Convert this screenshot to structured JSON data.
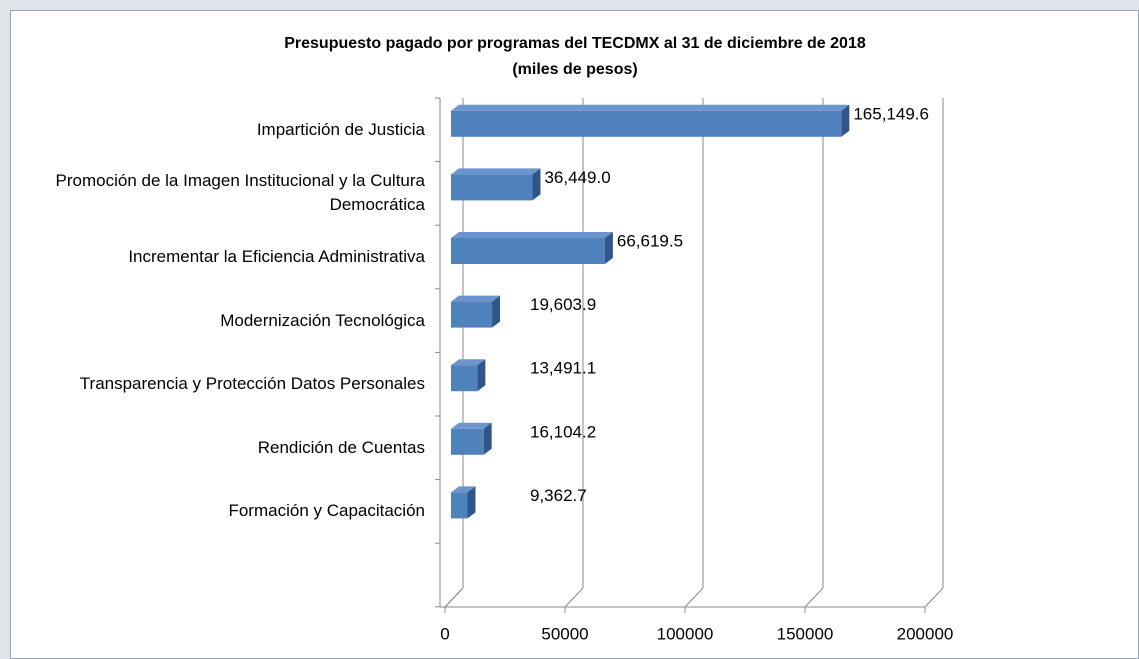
{
  "chart_data": {
    "type": "bar",
    "orientation": "horizontal",
    "title": "Presupuesto pagado por programas del TECDMX al 31 de diciembre de 2018",
    "subtitle": "(miles de pesos)",
    "categories": [
      "Impartición de Justicia",
      "Promoción de la Imagen Institucional y la Cultura Democrática",
      "Incrementar la Eficiencia Administrativa",
      "Modernización Tecnológica",
      "Transparencia y Protección Datos Personales",
      "Rendición de Cuentas",
      "Formación y Capacitación"
    ],
    "values": [
      165149.6,
      36449.0,
      66619.5,
      19603.9,
      13491.1,
      16104.2,
      9362.7
    ],
    "value_labels": [
      "165,149.6",
      "36,449.0",
      "66,619.5",
      "19,603.9",
      "13,491.1",
      "16,104.2",
      "9,362.7"
    ],
    "color": "#4f81bd",
    "xlim": [
      0,
      200000
    ],
    "xticks": [
      0,
      50000,
      100000,
      150000,
      200000
    ],
    "grid": true
  }
}
